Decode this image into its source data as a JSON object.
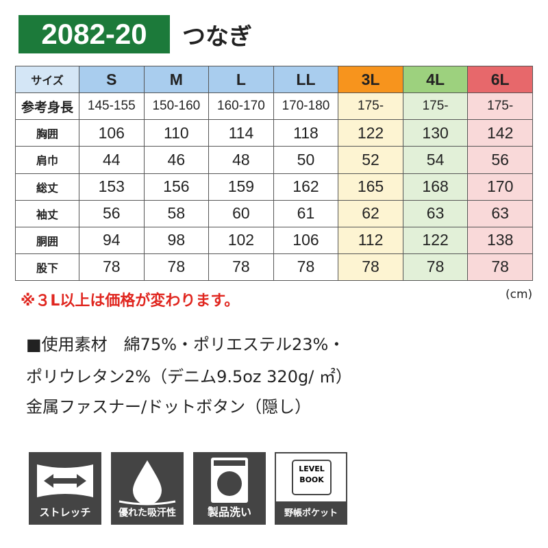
{
  "header": {
    "code": "2082-20",
    "title": "つなぎ"
  },
  "table": {
    "columns": [
      "サイズ",
      "S",
      "M",
      "L",
      "LL",
      "3L",
      "4L",
      "6L"
    ],
    "rows": [
      [
        "参考身長",
        "145-155",
        "150-160",
        "160-170",
        "170-180",
        "175-",
        "175-",
        "175-"
      ],
      [
        "胸囲",
        106,
        110,
        114,
        118,
        122,
        130,
        142
      ],
      [
        "肩巾",
        44,
        46,
        48,
        50,
        52,
        54,
        56
      ],
      [
        "総丈",
        153,
        156,
        159,
        162,
        165,
        168,
        170
      ],
      [
        "袖丈",
        56,
        58,
        60,
        61,
        62,
        63,
        63
      ],
      [
        "胴囲",
        94,
        98,
        102,
        106,
        112,
        122,
        138
      ],
      [
        "股下",
        78,
        78,
        78,
        78,
        78,
        78,
        78
      ]
    ]
  },
  "note": "※３L以上は価格が変わります。",
  "unit": "(cm)",
  "specs": [
    "■使用素材　綿75%・ポリエステル23%・",
    "ポリウレタン2%（デニム9.5oz 320g/ ㎡）",
    "金属ファスナー/ドットボタン（隠し）"
  ],
  "icons": [
    {
      "label": "ストレッチ"
    },
    {
      "label": "優れた吸汗性"
    },
    {
      "label": "製品洗い"
    },
    {
      "label": "野帳ポケット",
      "text": [
        "LEVEL",
        "BOOK"
      ]
    }
  ]
}
